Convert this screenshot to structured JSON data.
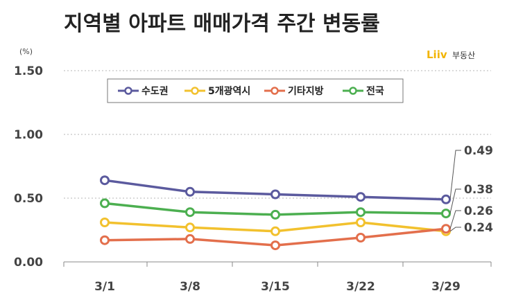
{
  "title": "지역별 아파트 매매가격 주간 변동률",
  "brand": {
    "logo": "Liiv",
    "name": "부동산",
    "logo_color": "#f2b400"
  },
  "chart_data": {
    "type": "line",
    "title": "지역별 아파트 매매가격 주간 변동률",
    "unit": "(%)",
    "categories": [
      "3/1",
      "3/8",
      "3/15",
      "3/22",
      "3/29"
    ],
    "ylim": [
      0,
      1.5
    ],
    "yticks": [
      "0.00",
      "0.50",
      "1.00",
      "1.50"
    ],
    "grid": true,
    "legend_position": "top-left",
    "series": [
      {
        "name": "수도권",
        "color": "#5b5a9e",
        "values": [
          0.64,
          0.55,
          0.53,
          0.51,
          0.49
        ]
      },
      {
        "name": "5개광역시",
        "color": "#f2c12e",
        "values": [
          0.31,
          0.27,
          0.24,
          0.31,
          0.24
        ]
      },
      {
        "name": "기타지방",
        "color": "#e36f4c",
        "values": [
          0.17,
          0.18,
          0.13,
          0.19,
          0.26
        ]
      },
      {
        "name": "전국",
        "color": "#4caf50",
        "values": [
          0.46,
          0.39,
          0.37,
          0.39,
          0.38
        ]
      }
    ],
    "end_labels": [
      "0.49",
      "0.38",
      "0.26",
      "0.24"
    ]
  }
}
